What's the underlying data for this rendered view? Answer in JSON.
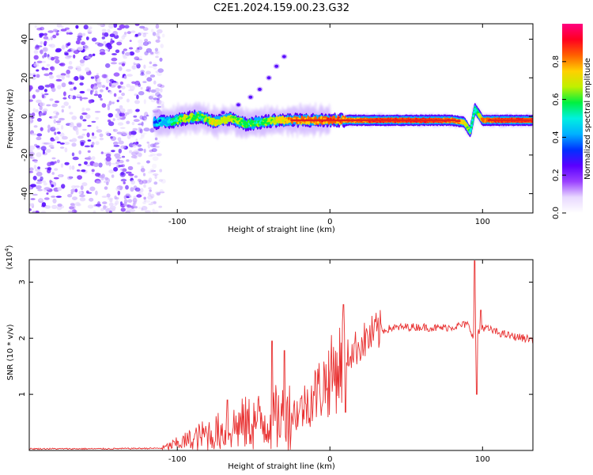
{
  "title": "C2E1.2024.159.00.23.G32",
  "chart_data": [
    {
      "type": "heatmap",
      "name": "spectrogram",
      "xlabel": "Height of straight line (km)",
      "ylabel": "Frequency (Hz)",
      "xlim": [
        -197,
        133
      ],
      "ylim": [
        -50,
        48
      ],
      "x_ticks": [
        -100,
        0,
        100
      ],
      "x_tick_labels": [
        "-100",
        "0",
        "100"
      ],
      "y_ticks": [
        -40,
        -20,
        0,
        20,
        40
      ],
      "y_tick_labels": [
        "-40",
        "-20",
        "0",
        "20",
        "40"
      ],
      "colorbar": {
        "label": "Normalized spectral amplitude",
        "range": [
          0,
          1
        ],
        "ticks": [
          0.0,
          0.2,
          0.4,
          0.6,
          0.8
        ],
        "tick_labels": [
          "0.0",
          "0.2",
          "0.4",
          "0.6",
          "0.8"
        ],
        "colors": [
          "#ffffff",
          "#e8d8ff",
          "#9a40ff",
          "#5a00ff",
          "#0030ff",
          "#00b0ff",
          "#00f0e0",
          "#00f040",
          "#c0f000",
          "#ffd000",
          "#ff6000",
          "#ff0020",
          "#ff0080"
        ]
      },
      "noise_region_x": [
        -197,
        -115
      ],
      "ridge": {
        "x": [
          -115,
          -105,
          -95,
          -85,
          -75,
          -65,
          -55,
          -45,
          -35,
          -25,
          -15,
          -5,
          5,
          20,
          40,
          60,
          80,
          88,
          92,
          95,
          100,
          110,
          133
        ],
        "freq": [
          -3,
          -3,
          -1,
          0,
          -3,
          -1,
          -4,
          -3,
          -2,
          -2,
          -2,
          -2,
          -2,
          -2,
          -2,
          -2,
          -2,
          -3,
          -8,
          4,
          -2,
          -2,
          -2
        ],
        "amplitude": [
          0.35,
          0.5,
          0.7,
          0.6,
          0.75,
          0.7,
          0.6,
          0.6,
          0.75,
          0.85,
          0.85,
          0.9,
          0.9,
          0.9,
          0.95,
          0.95,
          0.9,
          0.8,
          0.6,
          0.5,
          0.85,
          0.95,
          0.95
        ]
      },
      "secondary_branch": {
        "x": [
          -70,
          -60,
          -52,
          -46,
          -40,
          -35,
          -30
        ],
        "freq": [
          2,
          6,
          10,
          14,
          20,
          26,
          31
        ]
      }
    },
    {
      "type": "line",
      "name": "snr",
      "xlabel": "Height of straight line (km)",
      "ylabel": "SNR (10 * v/v)",
      "multiplier_label": "(x10",
      "multiplier_exp": "4",
      "multiplier_close": ")",
      "xlim": [
        -197,
        133
      ],
      "ylim": [
        0,
        34000
      ],
      "x_ticks": [
        -100,
        0,
        100
      ],
      "x_tick_labels": [
        "-100",
        "0",
        "100"
      ],
      "y_ticks": [
        10000,
        20000,
        30000
      ],
      "y_tick_labels": [
        "1",
        "2",
        "3"
      ],
      "color": "#e83030",
      "series": [
        {
          "x": [
            -197,
            -150,
            -110,
            -100,
            -90,
            -80,
            -70,
            -60,
            -50,
            -40,
            -30,
            -20,
            -10,
            0,
            10,
            20,
            30,
            40,
            50,
            60,
            70,
            80,
            90,
            95,
            100,
            110,
            120,
            133
          ],
          "values": [
            300,
            300,
            400,
            1200,
            2000,
            3000,
            3500,
            4500,
            5000,
            5500,
            6000,
            7000,
            10000,
            13000,
            16500,
            19000,
            21000,
            21800,
            22000,
            22000,
            21800,
            22000,
            22500,
            20000,
            22000,
            21000,
            20300,
            19800
          ]
        }
      ],
      "spikes": [
        {
          "x": -67,
          "value": 9000
        },
        {
          "x": -38,
          "value": 19500
        },
        {
          "x": -30,
          "value": 17800
        },
        {
          "x": 9,
          "value": 26000
        },
        {
          "x": 10,
          "value": 6800
        },
        {
          "x": 95,
          "value": 33800
        },
        {
          "x": 96,
          "value": 10000
        },
        {
          "x": 99,
          "value": 25000
        }
      ]
    }
  ]
}
